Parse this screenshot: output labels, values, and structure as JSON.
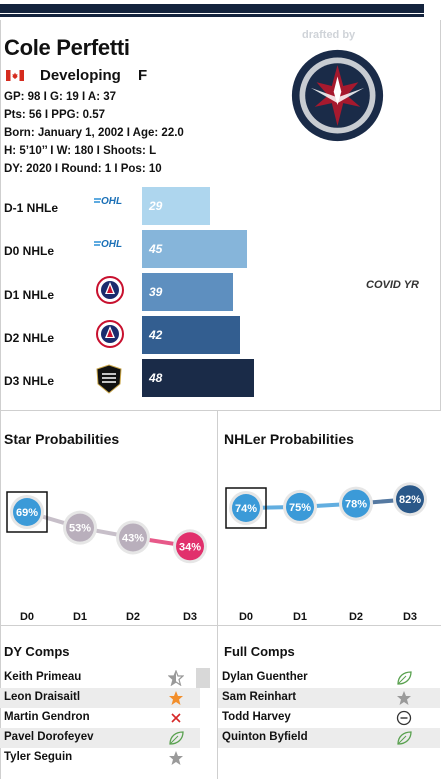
{
  "player": {
    "name": "Cole Perfetti",
    "status": "Developing",
    "position": "F",
    "stats": [
      "GP: 98 I G: 19 I A: 37",
      "Pts: 56 I PPG: 0.57",
      "Born: January 1, 2002 I Age: 22.0",
      "H: 5’10’’ I W: 180 I Shoots: L",
      "DY: 2020 I Round: 1 I Pos: 10"
    ]
  },
  "header": {
    "drafted_by": "drafted by"
  },
  "colors": {
    "navy": "#14233d",
    "light_blue": "#a9d3ee",
    "mid_blue": "#3b9ad8",
    "red": "#e1306c",
    "grey": "#b9afbc"
  },
  "nhle": {
    "rows": [
      {
        "label": "D-1 NHLe",
        "league_icon": "ohl-logo-icon",
        "value": "29",
        "num": 29,
        "color": "#aed6ee"
      },
      {
        "label": "D0 NHLe",
        "league_icon": "ohl-logo-icon",
        "value": "45",
        "num": 45,
        "color": "#86b5da"
      },
      {
        "label": "D1 NHLe",
        "league_icon": "ahl-logo-icon",
        "value": "39",
        "num": 39,
        "color": "#5e8fbf"
      },
      {
        "label": "D2 NHLe",
        "league_icon": "ahl-logo-icon",
        "value": "42",
        "num": 42,
        "color": "#335e90"
      },
      {
        "label": "D3 NHLe",
        "league_icon": "nhl-logo-icon",
        "value": "48",
        "num": 48,
        "color": "#1a2b48"
      }
    ],
    "note": "COVID YR"
  },
  "chart_data": [
    {
      "type": "line",
      "title": "Star Probabilities",
      "categories": [
        "D0",
        "D1",
        "D2",
        "D3"
      ],
      "values": [
        69,
        53,
        43,
        34
      ],
      "labels": [
        "69%",
        "53%",
        "43%",
        "34%"
      ],
      "colors": [
        "#3b9ad8",
        "#b9afbc",
        "#b9afbc",
        "#e1306c"
      ]
    },
    {
      "type": "line",
      "title": "NHLer Probabilities",
      "categories": [
        "D0",
        "D1",
        "D2",
        "D3"
      ],
      "values": [
        74,
        75,
        78,
        82
      ],
      "labels": [
        "74%",
        "75%",
        "78%",
        "82%"
      ],
      "colors": [
        "#3b9ad8",
        "#3b9ad8",
        "#3b9ad8",
        "#2a5889"
      ]
    }
  ],
  "dy_comps": {
    "title": "DY Comps",
    "items": [
      {
        "name": "Keith Primeau",
        "icon": "half-star-icon"
      },
      {
        "name": "Leon Draisaitl",
        "icon": "orange-star-icon"
      },
      {
        "name": "Martin Gendron",
        "icon": "red-x-icon"
      },
      {
        "name": "Pavel Dorofeyev",
        "icon": "leaf-icon"
      },
      {
        "name": "Tyler Seguin",
        "icon": "grey-star-icon"
      }
    ]
  },
  "full_comps": {
    "title": "Full Comps",
    "items": [
      {
        "name": "Dylan Guenther",
        "icon": "leaf-icon"
      },
      {
        "name": "Sam Reinhart",
        "icon": "grey-star-icon"
      },
      {
        "name": "Todd Harvey",
        "icon": "minus-circle-icon"
      },
      {
        "name": "Quinton Byfield",
        "icon": "leaf-icon"
      }
    ]
  }
}
